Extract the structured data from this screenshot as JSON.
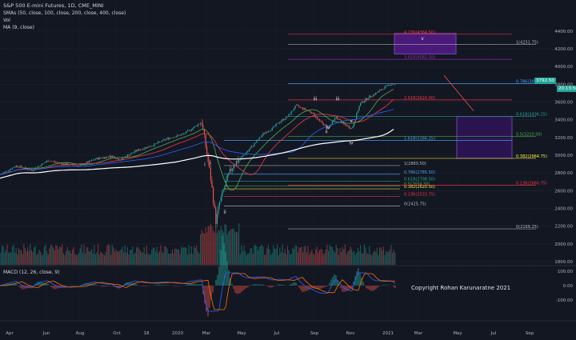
{
  "legend": {
    "title": "S&P 500 E-mini Futures, 1D, CME_MINI",
    "smas": "SMAs (50, close, 100, close, 200, close, 400, close)",
    "vol": "Vol",
    "ma": "MA (9, close)"
  },
  "macd_legend": "MACD (12, 26, close, 9)",
  "copyright": "Copyright Rohan Karunaratne 2021",
  "last_price": "3792.50",
  "last_time": "20:13:56",
  "colors": {
    "background": "#131722",
    "up": "#26a69a",
    "down": "#ef5350",
    "sma50": "#4caf50",
    "sma100": "#f23645",
    "sma200": "#2962ff",
    "sma400": "#ffffff",
    "fib_zone": "#4a1a7a"
  },
  "chart_data": {
    "type": "line",
    "y_axis": {
      "range": [
        1750,
        4560
      ],
      "ticks": [
        1800,
        2000,
        2200,
        2400,
        2600,
        2800,
        3000,
        3200,
        3400,
        3600,
        3800,
        4000,
        4200,
        4400
      ]
    },
    "x_axis": {
      "labels": [
        "Apr",
        "Jun",
        "Aug",
        "Oct",
        "18",
        "2020",
        "Mar",
        "May",
        "Jul",
        "Sep",
        "Nov",
        "2021",
        "Mar",
        "May",
        "Jul",
        "Sep"
      ]
    },
    "macd_axis": {
      "ticks": [
        "100.00",
        "0.00",
        "-100.00"
      ]
    },
    "series": [
      {
        "name": "",
        "x": [
          "Apr",
          "Jun",
          "Aug",
          "Oct",
          "18",
          "2020",
          "Mar",
          "May",
          "Jul",
          "Sep",
          "Nov",
          "2021"
        ],
        "values": [
          2870,
          2850,
          2920,
          2980,
          3130,
          3240,
          2400,
          2850,
          3150,
          3400,
          3350,
          3792
        ]
      }
    ],
    "fib_levels": [
      {
        "label": "4.236(4364.50)",
        "value": 4364.5,
        "color": "#f23645"
      },
      {
        "label": "1(4251.75)",
        "value": 4251.75,
        "color": "#b2b5be"
      },
      {
        "label": "3.618(4081.50)",
        "value": 4081.5,
        "color": "#9c27b0"
      },
      {
        "label": "0.786(3806.50)",
        "value": 3806.5,
        "color": "#42a5f5"
      },
      {
        "label": "2.618(3624.00)",
        "value": 3624.0,
        "color": "#f23645"
      },
      {
        "label": "0.618(3436.25)",
        "value": 3436.25,
        "color": "#26a69a"
      },
      {
        "label": "1.618(3166.25)",
        "value": 3166.25,
        "color": "#42a5f5"
      },
      {
        "label": "0.5(3210.50)",
        "value": 3210.5,
        "color": "#4caf50"
      },
      {
        "label": "0.382(2964.75)",
        "value": 2964.75,
        "color": "#ffeb3b"
      },
      {
        "label": "1(2883.50)",
        "value": 2883.5,
        "color": "#b2b5be"
      },
      {
        "label": "0.786(2785.50)",
        "value": 2785.5,
        "color": "#42a5f5"
      },
      {
        "label": "0.618(2708.50)",
        "value": 2708.5,
        "color": "#26a69a"
      },
      {
        "label": "0.5(2654.50)",
        "value": 2654.5,
        "color": "#4caf50"
      },
      {
        "label": "0.382(2620.50)",
        "value": 2620.5,
        "color": "#ffeb3b"
      },
      {
        "label": "0.236(2533.75)",
        "value": 2533.75,
        "color": "#f23645"
      },
      {
        "label": "0.236(2660.75)",
        "value": 2660.75,
        "color": "#f23645"
      },
      {
        "label": "0(2425.75)",
        "value": 2425.75,
        "color": "#b2b5be"
      },
      {
        "label": "0(2169.25)",
        "value": 2169.25,
        "color": "#b2b5be"
      }
    ],
    "wave_labels": [
      "i",
      "ii",
      "iii",
      "iv",
      "v",
      "ii",
      "iii",
      "iv",
      "v",
      "i"
    ]
  }
}
